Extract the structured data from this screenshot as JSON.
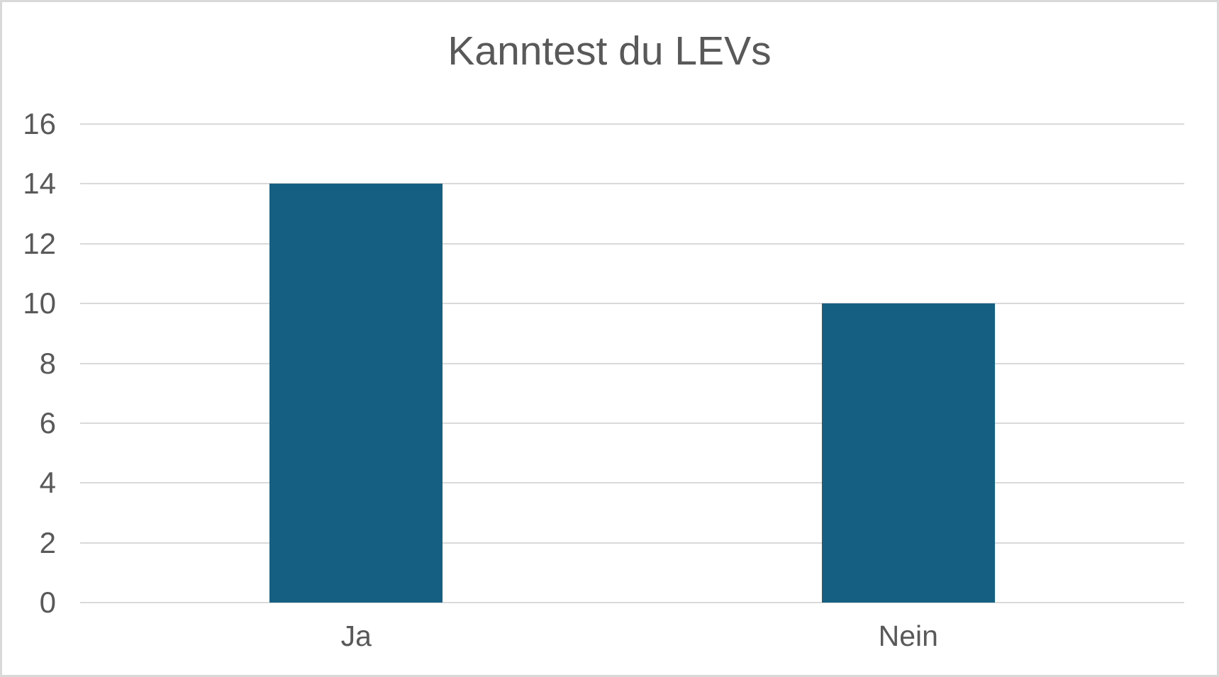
{
  "chart_data": {
    "type": "bar",
    "title": "Kanntest du LEVs",
    "categories": [
      "Ja",
      "Nein"
    ],
    "values": [
      14,
      10
    ],
    "xlabel": "",
    "ylabel": "",
    "ylim": [
      0,
      16
    ],
    "ytick_step": 2,
    "ytick_labels": [
      "0",
      "2",
      "4",
      "6",
      "8",
      "10",
      "12",
      "14",
      "16"
    ],
    "legend": "none",
    "grid": "horizontal-only"
  },
  "colors": {
    "bar": "#156082",
    "gridline": "#d9d9d9",
    "axis_text": "#595959",
    "title_text": "#595959",
    "frame_border": "#d9d9d9",
    "background": "#ffffff"
  }
}
